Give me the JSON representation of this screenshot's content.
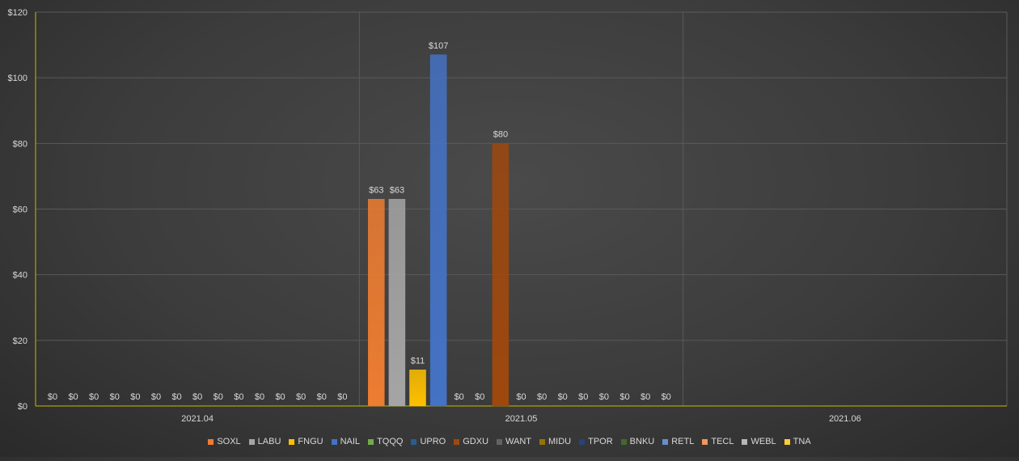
{
  "chart_data": {
    "type": "bar",
    "categories": [
      "2021.04",
      "2021.05",
      "2021.06"
    ],
    "ylim": [
      0,
      120
    ],
    "yticks": [
      0,
      20,
      40,
      60,
      80,
      100,
      120
    ],
    "ytick_labels": [
      "$0",
      "$20",
      "$40",
      "$60",
      "$80",
      "$100",
      "$120"
    ],
    "grid": true,
    "legend_position": "bottom",
    "series": [
      {
        "name": "SOXL",
        "color": "#ed7d31",
        "values": [
          0,
          63,
          null
        ]
      },
      {
        "name": "LABU",
        "color": "#a5a5a5",
        "values": [
          0,
          63,
          null
        ]
      },
      {
        "name": "FNGU",
        "color": "#ffc000",
        "values": [
          0,
          11,
          null
        ]
      },
      {
        "name": "NAIL",
        "color": "#4472c4",
        "values": [
          0,
          107,
          null
        ]
      },
      {
        "name": "TQQQ",
        "color": "#70ad47",
        "values": [
          0,
          0,
          null
        ]
      },
      {
        "name": "UPRO",
        "color": "#255e91",
        "values": [
          0,
          0,
          null
        ]
      },
      {
        "name": "GDXU",
        "color": "#9e480e",
        "values": [
          0,
          80,
          null
        ]
      },
      {
        "name": "WANT",
        "color": "#636363",
        "values": [
          0,
          0,
          null
        ]
      },
      {
        "name": "MIDU",
        "color": "#997300",
        "values": [
          0,
          0,
          null
        ]
      },
      {
        "name": "TPOR",
        "color": "#264478",
        "values": [
          0,
          0,
          null
        ]
      },
      {
        "name": "BNKU",
        "color": "#43682b",
        "values": [
          0,
          0,
          null
        ]
      },
      {
        "name": "RETL",
        "color": "#698ed0",
        "values": [
          0,
          0,
          null
        ]
      },
      {
        "name": "TECL",
        "color": "#f1975a",
        "values": [
          0,
          0,
          null
        ]
      },
      {
        "name": "WEBL",
        "color": "#b7b7b7",
        "values": [
          0,
          0,
          null
        ]
      },
      {
        "name": "TNA",
        "color": "#ffcd33",
        "values": [
          0,
          0,
          null
        ]
      }
    ],
    "value_prefix": "$"
  }
}
